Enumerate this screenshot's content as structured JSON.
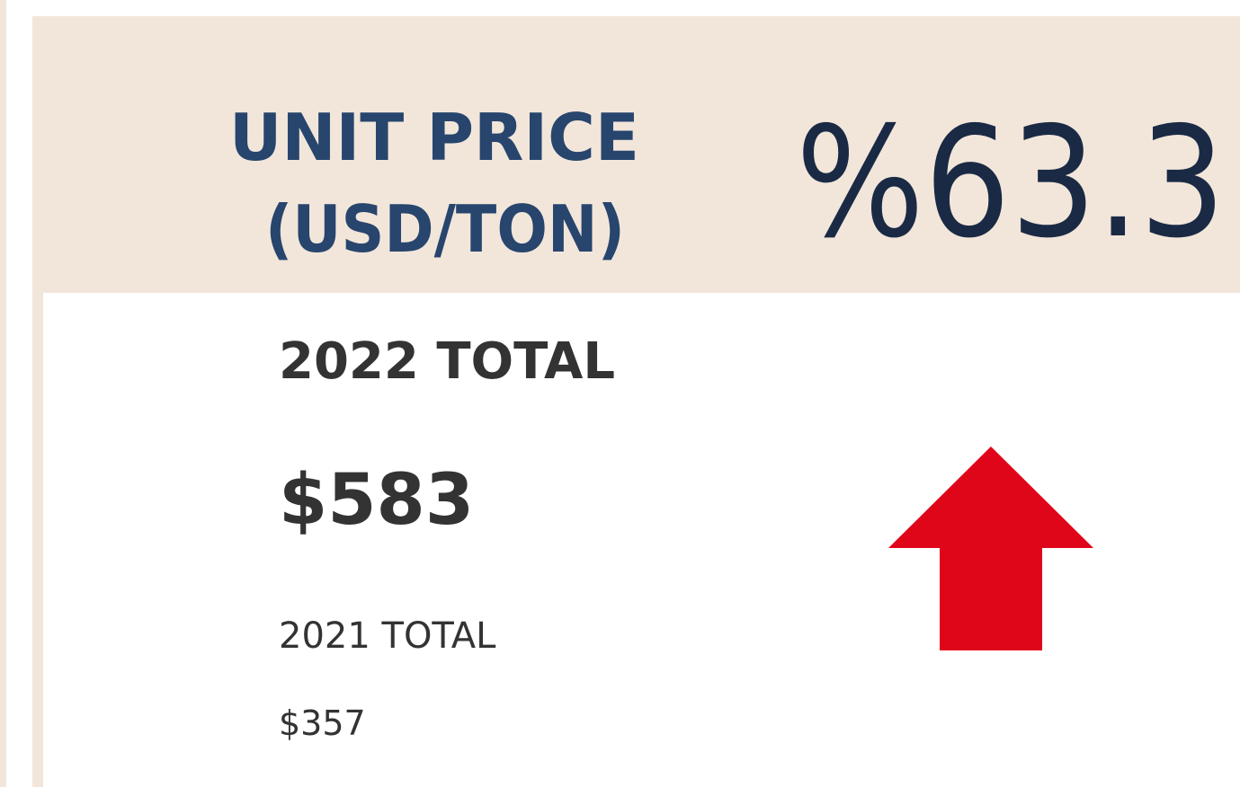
{
  "card": {
    "title_lines": [
      "UNIT PRICE",
      "(USD/TON)"
    ],
    "change": "%63.3",
    "current_label": "2022 TOTAL",
    "current_value": "$583",
    "previous_label": "2021 TOTAL",
    "previous_value": "$357"
  }
}
